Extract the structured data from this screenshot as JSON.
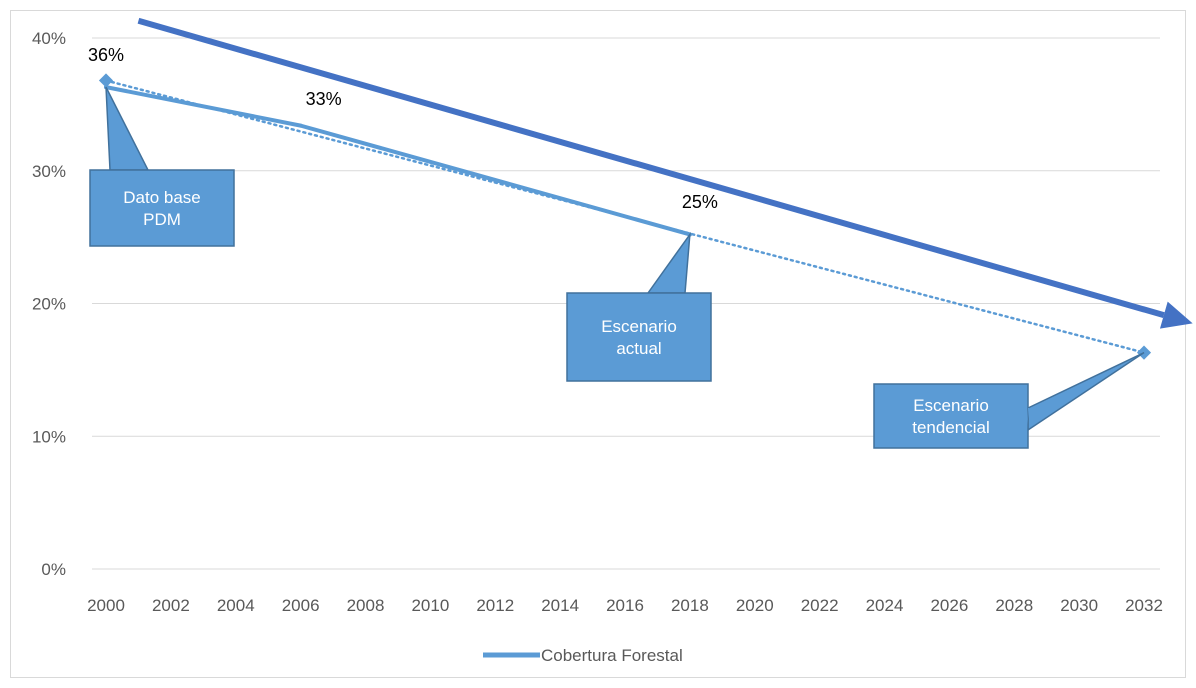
{
  "chart_data": {
    "type": "line",
    "x_ticks": [
      "2000",
      "2002",
      "2004",
      "2006",
      "2008",
      "2010",
      "2012",
      "2014",
      "2016",
      "2018",
      "2020",
      "2022",
      "2024",
      "2026",
      "2028",
      "2030",
      "2032"
    ],
    "y_ticks": [
      "0%",
      "10%",
      "20%",
      "30%",
      "40%"
    ],
    "ylim": [
      0,
      40
    ],
    "xlim": [
      2000,
      2032
    ],
    "grid": true,
    "legend_position": "bottom",
    "series": [
      {
        "name": "Cobertura Forestal",
        "color": "#5b9bd5",
        "points": [
          {
            "x": 2000,
            "y": 36.3
          },
          {
            "x": 2006,
            "y": 33.4
          },
          {
            "x": 2018,
            "y": 25.2
          }
        ]
      }
    ],
    "trendline": {
      "style": "dotted",
      "color": "#5b9bd5",
      "points": [
        {
          "x": 2000,
          "y": 36.8
        },
        {
          "x": 2032,
          "y": 16.3
        }
      ]
    },
    "data_labels": [
      {
        "x": 2000,
        "y": 36,
        "text": "36%"
      },
      {
        "x": 2006,
        "y": 33,
        "text": "33%"
      },
      {
        "x": 2018,
        "y": 25,
        "text": "25%"
      }
    ],
    "callouts": [
      {
        "lines": [
          "Dato base",
          "PDM"
        ],
        "x": 2000,
        "y": 36.3
      },
      {
        "lines": [
          "Escenario",
          "actual"
        ],
        "x": 2018,
        "y": 25.2
      },
      {
        "lines": [
          "Escenario",
          "tendencial"
        ],
        "x": 2032,
        "y": 16.3
      }
    ],
    "arrow": {
      "color": "#4472c4",
      "from": {
        "x": 2001,
        "y": 41.3
      },
      "to": {
        "x": 2033.5,
        "y": 18.5
      }
    }
  }
}
